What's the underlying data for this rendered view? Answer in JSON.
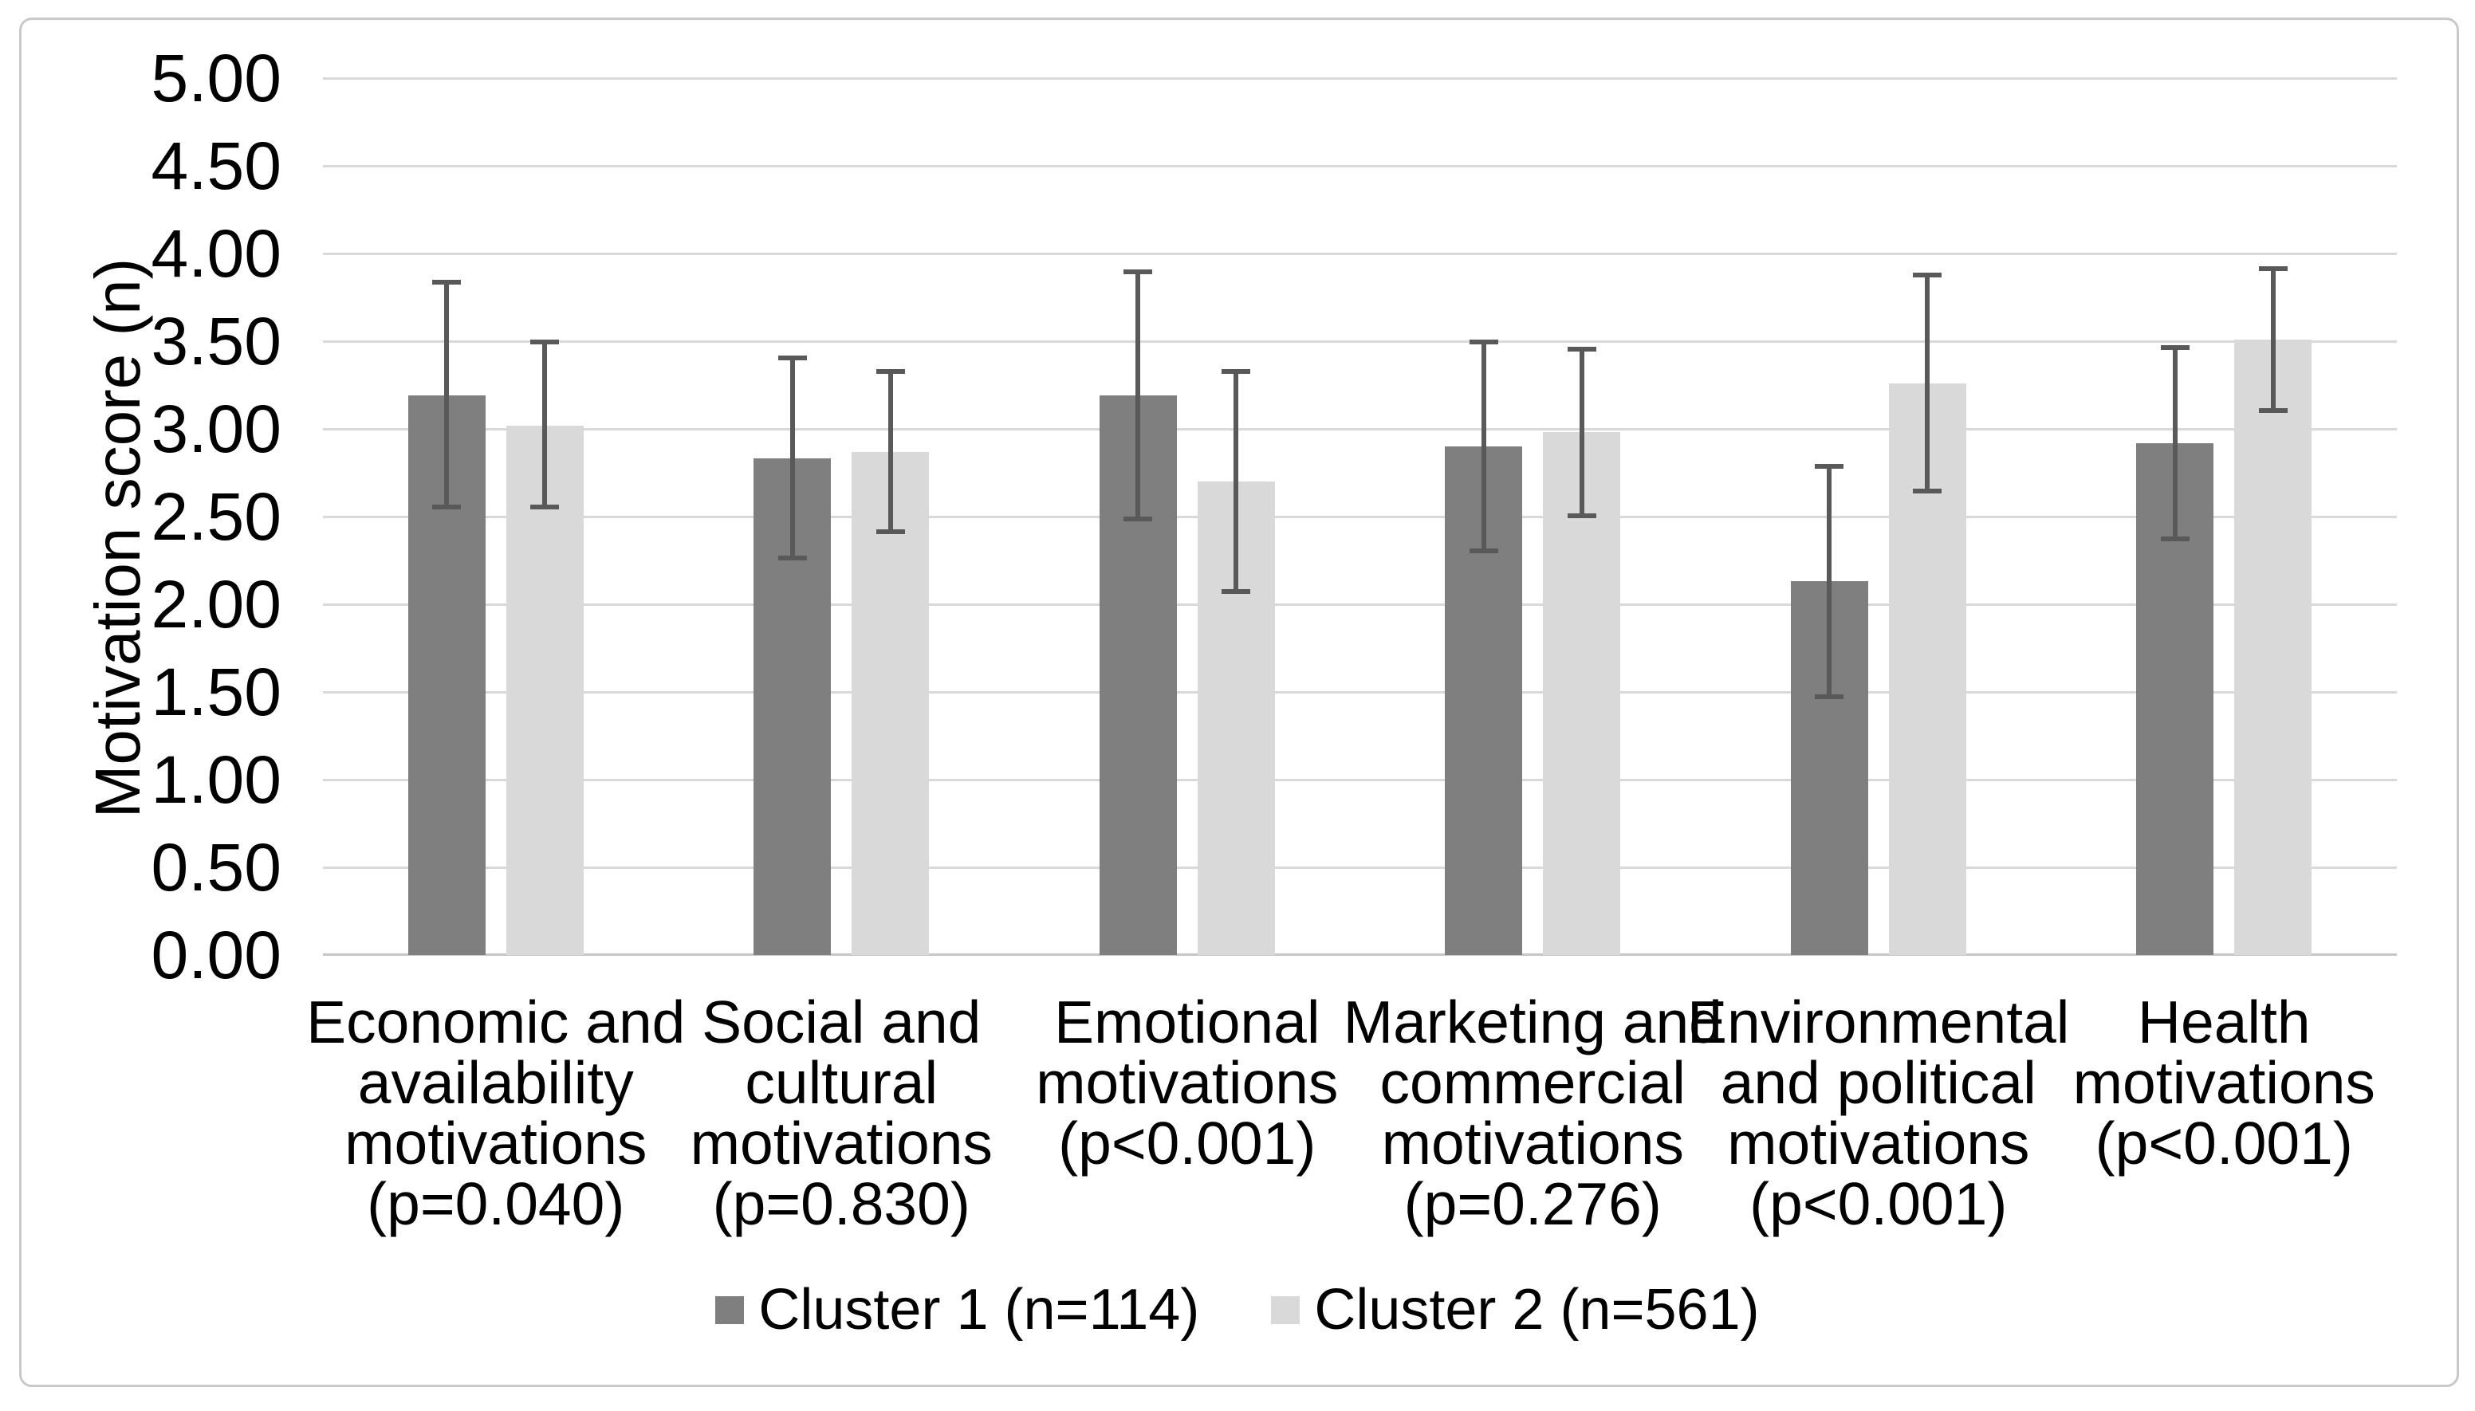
{
  "figure": {
    "background_color": "#ffffff",
    "border_color": "#c9c9c9"
  },
  "chart_data": {
    "type": "bar",
    "title": "",
    "xlabel": "",
    "ylabel": "Motivation score (n)",
    "ylim": [
      0,
      5
    ],
    "y_tick_step": 0.5,
    "y_tick_labels": [
      "5.00",
      "4.50",
      "4.00",
      "3.50",
      "3.00",
      "2.50",
      "2.00",
      "1.50",
      "1.00",
      "0.50",
      "0.00"
    ],
    "grid": "horizontal",
    "gridline_color": "#d9d9d9",
    "axis_line_color": "#c6c6c6",
    "text_color": "#000000",
    "error_bar_color": "#595959",
    "legend_position": "bottom",
    "categories": [
      {
        "label": "Economic and\navailability\nmotivations\n(p=0.040)"
      },
      {
        "label": "Social and\ncultural\nmotivations\n(p=0.830)"
      },
      {
        "label": "Emotional\nmotivations\n(p<0.001)"
      },
      {
        "label": "Marketing and\ncommercial\nmotivations\n(p=0.276)"
      },
      {
        "label": "Environmental\nand political\nmotivations\n(p<0.001)"
      },
      {
        "label": "Health\nmotivations\n(p<0.001)"
      }
    ],
    "series": [
      {
        "name": "Cluster 1 (n=114)",
        "color": "#7f7f7f",
        "values": [
          3.19,
          2.83,
          3.19,
          2.9,
          2.13,
          2.92
        ],
        "error_upper": [
          3.84,
          3.41,
          3.9,
          3.5,
          2.79,
          3.47
        ],
        "error_lower": [
          2.55,
          2.26,
          2.48,
          2.3,
          1.47,
          2.37
        ]
      },
      {
        "name": "Cluster 2 (n=561)",
        "color": "#d9d9d9",
        "values": [
          3.02,
          2.87,
          2.7,
          2.98,
          3.26,
          3.51
        ],
        "error_upper": [
          3.5,
          3.33,
          3.33,
          3.46,
          3.88,
          3.92
        ],
        "error_lower": [
          2.55,
          2.41,
          2.07,
          2.5,
          2.64,
          3.1
        ]
      }
    ]
  }
}
